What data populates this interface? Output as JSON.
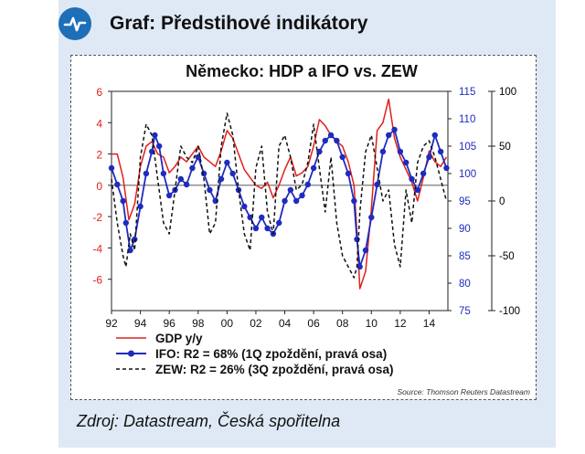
{
  "header": {
    "title": "Graf:  Předstihové indikátory",
    "logo_icon": "chart-line-icon"
  },
  "footer": {
    "source_line": "Zdroj: Datastream, Česká spořitelna"
  },
  "chart_data": {
    "type": "line",
    "title": "Německo: HDP a IFO vs. ZEW",
    "source_note": "Source: Thomson Reuters Datastream",
    "x_tick_labels": [
      "92",
      "94",
      "96",
      "98",
      "00",
      "02",
      "04",
      "06",
      "08",
      "10",
      "12",
      "14"
    ],
    "x_range": [
      1992,
      2015.3
    ],
    "left_axis": {
      "range": [
        -8,
        6
      ],
      "ticks": [
        6,
        4,
        2,
        0,
        -2,
        -4,
        -6
      ],
      "color": "#e0201a"
    },
    "mid_axis": {
      "range": [
        75,
        115
      ],
      "ticks": [
        115,
        110,
        105,
        100,
        95,
        90,
        85,
        80,
        75
      ],
      "color": "#1f2bbf"
    },
    "right_axis": {
      "range": [
        -100,
        100
      ],
      "ticks": [
        100,
        50,
        0,
        -50,
        -100
      ],
      "color": "#000000"
    },
    "series": [
      {
        "name": "GDP y/y",
        "axis": "left",
        "color": "#e0201a",
        "x": [
          1992.0,
          1992.4,
          1992.8,
          1993.2,
          1993.6,
          1994.0,
          1994.4,
          1994.8,
          1995.2,
          1995.6,
          1996.0,
          1996.4,
          1996.8,
          1997.2,
          1997.6,
          1998.0,
          1998.4,
          1998.8,
          1999.2,
          1999.6,
          2000.0,
          2000.4,
          2000.8,
          2001.2,
          2001.6,
          2002.0,
          2002.4,
          2002.8,
          2003.2,
          2003.6,
          2004.0,
          2004.4,
          2004.8,
          2005.2,
          2005.6,
          2006.0,
          2006.4,
          2006.8,
          2007.2,
          2007.6,
          2008.0,
          2008.4,
          2008.8,
          2009.0,
          2009.2,
          2009.6,
          2010.0,
          2010.4,
          2010.8,
          2011.2,
          2011.6,
          2012.0,
          2012.4,
          2012.8,
          2013.2,
          2013.6,
          2014.0,
          2014.4,
          2014.8,
          2015.2
        ],
        "y": [
          2.0,
          2.0,
          0.5,
          -2.2,
          -1.2,
          1.2,
          2.5,
          2.8,
          2.0,
          1.8,
          0.8,
          1.2,
          1.8,
          1.5,
          2.0,
          2.5,
          1.8,
          1.5,
          1.2,
          2.2,
          3.5,
          3.0,
          2.0,
          1.0,
          0.5,
          0.0,
          -0.2,
          0.2,
          -0.8,
          0.0,
          1.0,
          1.8,
          0.6,
          0.8,
          1.2,
          2.5,
          4.2,
          3.8,
          3.2,
          2.8,
          2.5,
          1.5,
          0.0,
          -3.0,
          -6.6,
          -5.5,
          -1.5,
          3.5,
          4.0,
          5.5,
          3.0,
          1.8,
          1.0,
          0.2,
          -1.0,
          0.5,
          2.2,
          1.5,
          1.2,
          1.8
        ]
      },
      {
        "name": "IFO: R2 = 68% (1Q zpoždění, pravá osa)",
        "axis": "mid",
        "color": "#1f2bbf",
        "x": [
          1992.0,
          1992.4,
          1992.8,
          1993.0,
          1993.3,
          1993.6,
          1994.0,
          1994.4,
          1994.8,
          1995.0,
          1995.3,
          1995.6,
          1996.0,
          1996.4,
          1996.8,
          1997.2,
          1997.6,
          1998.0,
          1998.4,
          1998.8,
          1999.2,
          1999.6,
          2000.0,
          2000.4,
          2000.8,
          2001.2,
          2001.6,
          2002.0,
          2002.4,
          2002.8,
          2003.2,
          2003.6,
          2004.0,
          2004.4,
          2004.8,
          2005.2,
          2005.6,
          2006.0,
          2006.4,
          2006.8,
          2007.2,
          2007.6,
          2008.0,
          2008.4,
          2008.8,
          2009.0,
          2009.2,
          2009.6,
          2010.0,
          2010.4,
          2010.8,
          2011.2,
          2011.6,
          2012.0,
          2012.4,
          2012.8,
          2013.2,
          2013.6,
          2014.0,
          2014.4,
          2014.8,
          2015.2
        ],
        "y": [
          101,
          98,
          95,
          91,
          86,
          88,
          94,
          100,
          104,
          107,
          105,
          100,
          96,
          97,
          99,
          98,
          101,
          103,
          100,
          97,
          95,
          99,
          102,
          100,
          97,
          94,
          92,
          90,
          92,
          90,
          89,
          91,
          95,
          97,
          95,
          96,
          98,
          101,
          104,
          106,
          107,
          106,
          103,
          100,
          95,
          88,
          83,
          86,
          92,
          98,
          104,
          107,
          108,
          104,
          102,
          99,
          97,
          100,
          103,
          107,
          104,
          101
        ]
      },
      {
        "name": "ZEW: R2 = 26% (3Q zpoždění, pravá osa)",
        "axis": "right",
        "color": "#111111",
        "x": [
          1992.0,
          1992.4,
          1992.8,
          1993.0,
          1993.3,
          1993.6,
          1994.0,
          1994.4,
          1994.8,
          1995.2,
          1995.6,
          1996.0,
          1996.4,
          1996.8,
          1997.2,
          1997.6,
          1998.0,
          1998.4,
          1998.8,
          1999.2,
          1999.6,
          2000.0,
          2000.4,
          2000.8,
          2001.2,
          2001.6,
          2002.0,
          2002.4,
          2002.8,
          2003.2,
          2003.6,
          2004.0,
          2004.4,
          2004.8,
          2005.2,
          2005.6,
          2006.0,
          2006.4,
          2006.8,
          2007.2,
          2007.6,
          2008.0,
          2008.4,
          2008.8,
          2009.0,
          2009.2,
          2009.6,
          2010.0,
          2010.4,
          2010.8,
          2011.2,
          2011.6,
          2012.0,
          2012.4,
          2012.8,
          2013.2,
          2013.6,
          2014.0,
          2014.4,
          2014.8,
          2015.2
        ],
        "y": [
          20,
          -20,
          -50,
          -60,
          -30,
          -45,
          40,
          70,
          60,
          20,
          -20,
          -30,
          10,
          50,
          40,
          35,
          50,
          20,
          -30,
          -20,
          50,
          80,
          60,
          10,
          -30,
          -45,
          30,
          50,
          -10,
          -30,
          50,
          60,
          40,
          10,
          15,
          35,
          70,
          30,
          -10,
          40,
          -20,
          -50,
          -60,
          -70,
          -60,
          -10,
          45,
          60,
          30,
          0,
          10,
          -40,
          -60,
          10,
          -20,
          35,
          50,
          55,
          40,
          20,
          0
        ]
      }
    ]
  }
}
